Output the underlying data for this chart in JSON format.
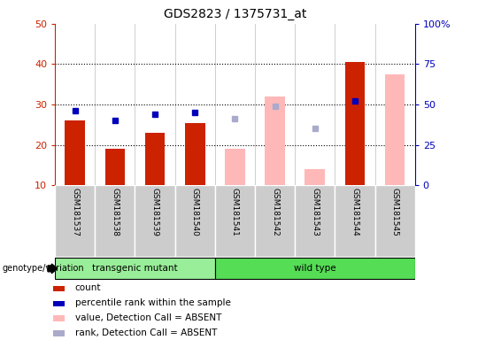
{
  "title": "GDS2823 / 1375731_at",
  "samples": [
    "GSM181537",
    "GSM181538",
    "GSM181539",
    "GSM181540",
    "GSM181541",
    "GSM181542",
    "GSM181543",
    "GSM181544",
    "GSM181545"
  ],
  "count_values": [
    26,
    19,
    23,
    25.5,
    null,
    null,
    null,
    40.5,
    null
  ],
  "percentile_values": [
    28.5,
    26,
    27.5,
    28,
    null,
    null,
    null,
    31,
    null
  ],
  "absent_value_values": [
    null,
    null,
    null,
    null,
    19,
    32,
    14,
    null,
    37.5
  ],
  "absent_rank_values": [
    null,
    null,
    null,
    null,
    26.5,
    29.5,
    24,
    null,
    null
  ],
  "left_ylim": [
    10,
    50
  ],
  "right_ylim": [
    0,
    100
  ],
  "left_yticks": [
    10,
    20,
    30,
    40,
    50
  ],
  "right_yticks": [
    0,
    25,
    50,
    75,
    100
  ],
  "right_yticklabels": [
    "0",
    "25",
    "50",
    "75",
    "100%"
  ],
  "bar_color_count": "#cc2200",
  "bar_color_absent_value": "#ffb8b8",
  "dot_color_percentile": "#0000bb",
  "dot_color_absent_rank": "#aaaacc",
  "group_color_transgenic": "#99ee99",
  "group_color_wild": "#55dd55",
  "sample_box_color": "#cccccc",
  "sample_box_edge": "#ffffff",
  "legend_items": [
    {
      "label": "count",
      "color": "#cc2200"
    },
    {
      "label": "percentile rank within the sample",
      "color": "#0000bb"
    },
    {
      "label": "value, Detection Call = ABSENT",
      "color": "#ffb8b8"
    },
    {
      "label": "rank, Detection Call = ABSENT",
      "color": "#aaaacc"
    }
  ],
  "dotted_lines": [
    20,
    30,
    40
  ]
}
